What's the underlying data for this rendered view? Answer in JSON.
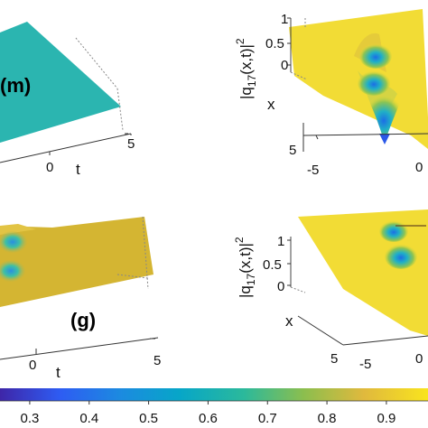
{
  "panels": [
    {
      "id": "m",
      "panel_label": "(m)",
      "t_ticks": [
        "0",
        "5"
      ],
      "t_axis_label": "t",
      "surface_color": "#2bb5b0"
    },
    {
      "id": "n",
      "z_label_main": "|q",
      "z_label_sub": "17",
      "z_label_tail": "(x,t)|",
      "z_label_sup": "2",
      "z_ticks": [
        "1",
        "0.5",
        "0"
      ],
      "x_axis_label": "x",
      "x_ticks": [
        "5"
      ],
      "t_ticks": [
        "-5",
        "0"
      ],
      "surface_color": "#f2dc35"
    },
    {
      "id": "g",
      "panel_label": "(g)",
      "t_ticks": [
        "0",
        "5"
      ],
      "t_axis_label": "t",
      "surface_color": "#d4b532"
    },
    {
      "id": "p",
      "z_label_main": "|q",
      "z_label_sub": "17",
      "z_label_tail": "(x,t)|",
      "z_label_sup": "2",
      "z_ticks": [
        "1",
        "0.5",
        "0"
      ],
      "x_axis_label": "x",
      "x_ticks": [
        "5"
      ],
      "t_ticks": [
        "-5",
        "0"
      ],
      "surface_color": "#f2dc35"
    }
  ],
  "colorbar": {
    "tick_labels": [
      "0.3",
      "0.4",
      "0.5",
      "0.6",
      "0.7",
      "0.8",
      "0.9"
    ],
    "tick_values": [
      0.3,
      0.4,
      0.5,
      0.6,
      0.7,
      0.8,
      0.9
    ],
    "range": [
      0.25,
      0.97
    ],
    "colormap": "parula"
  },
  "chart_data": {
    "type": "surface",
    "title": "",
    "subplots": [
      {
        "label": "(m)",
        "tlabel": "t",
        "t_ticks": [
          0,
          5
        ]
      },
      {
        "zlabel": "|q17(x,t)|^2",
        "xlabel": "x",
        "z_ticks": [
          0,
          0.5,
          1
        ],
        "x_ticks": [
          5
        ],
        "t_ticks": [
          -5,
          0
        ]
      },
      {
        "label": "(g)",
        "tlabel": "t",
        "t_ticks": [
          0,
          5
        ]
      },
      {
        "zlabel": "|q17(x,t)|^2",
        "xlabel": "x",
        "z_ticks": [
          0,
          0.5,
          1
        ],
        "x_ticks": [
          5
        ],
        "t_ticks": [
          -5,
          0
        ]
      }
    ],
    "colorbar": {
      "ticks": [
        0.3,
        0.4,
        0.5,
        0.6,
        0.7,
        0.8,
        0.9
      ],
      "colormap": "parula"
    },
    "grid": false
  }
}
